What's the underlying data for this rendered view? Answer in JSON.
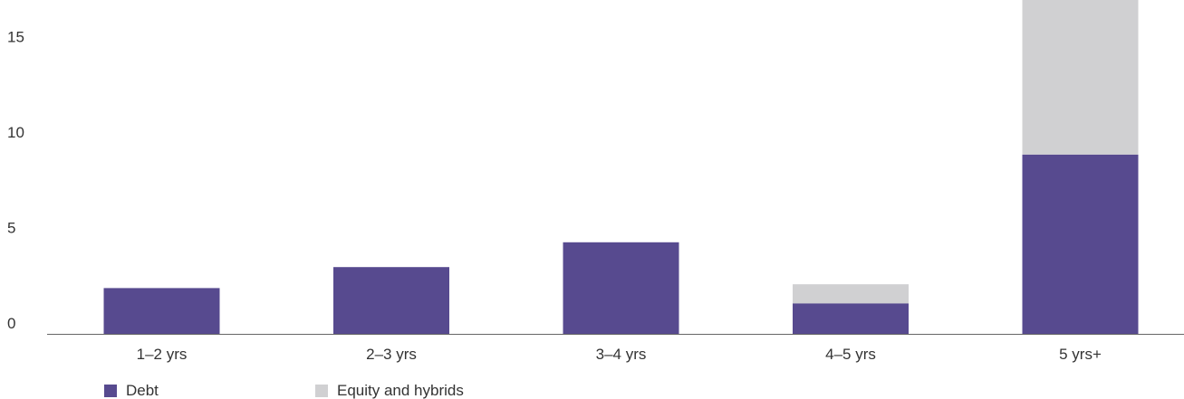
{
  "chart_data": {
    "type": "bar",
    "stacked": true,
    "categories": [
      "1–2 yrs",
      "2–3 yrs",
      "3–4 yrs",
      "4–5 yrs",
      "5 yrs+"
    ],
    "series": [
      {
        "name": "Debt",
        "values": [
          2.4,
          3.5,
          4.8,
          1.6,
          9.4
        ],
        "color": "#574a8f"
      },
      {
        "name": "Equity and hybrids",
        "values": [
          0,
          0,
          0,
          1.0,
          8.6
        ],
        "color": "#d0d0d2"
      }
    ],
    "yticks": [
      0,
      5,
      10,
      15
    ],
    "ylim": [
      0,
      17.5
    ],
    "grid": false,
    "legend_position": "bottom-left",
    "axis_color": "#666666"
  }
}
